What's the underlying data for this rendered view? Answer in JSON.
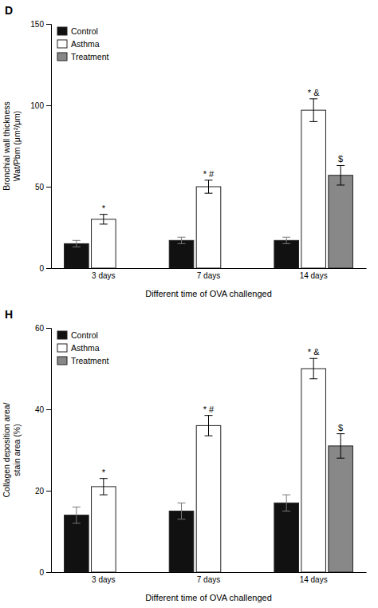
{
  "chart_data": [
    {
      "type": "bar",
      "title": "D",
      "xlabel": "Different time of OVA challenged",
      "ylabel": "Bronchial wall thickness\nWat/Pbm (μm²/μm)",
      "categories": [
        "3 days",
        "7 days",
        "14 days"
      ],
      "series": [
        {
          "name": "Control",
          "color": "#111111",
          "values": [
            15,
            17,
            17
          ],
          "errors": [
            2.0,
            2.0,
            2.0
          ]
        },
        {
          "name": "Asthma",
          "color": "#ffffff",
          "values": [
            30,
            50,
            97
          ],
          "errors": [
            3.0,
            4.0,
            7.0
          ]
        },
        {
          "name": "Treatment",
          "color": "#888888",
          "values": [
            null,
            null,
            57
          ],
          "errors": [
            null,
            null,
            6.0
          ]
        }
      ],
      "annotations": [
        {
          "text": "*",
          "x": "3 days",
          "series": "Asthma"
        },
        {
          "text": "* #",
          "x": "7 days",
          "series": "Asthma"
        },
        {
          "text": "* &",
          "x": "14 days",
          "series": "Asthma"
        },
        {
          "text": "$",
          "x": "14 days",
          "series": "Treatment"
        }
      ],
      "ylim": [
        0,
        150
      ],
      "yticks": [
        0,
        50,
        100,
        150
      ],
      "grid": false,
      "legend": "upper left"
    },
    {
      "type": "bar",
      "title": "H",
      "xlabel": "Different time of OVA challenged",
      "ylabel": "Collagen deposition area/\nstain area (%)",
      "categories": [
        "3 days",
        "7 days",
        "14 days"
      ],
      "series": [
        {
          "name": "Control",
          "color": "#111111",
          "values": [
            14,
            15,
            17
          ],
          "errors": [
            2.0,
            2.0,
            2.0
          ]
        },
        {
          "name": "Asthma",
          "color": "#ffffff",
          "values": [
            21,
            36,
            50
          ],
          "errors": [
            2.0,
            2.5,
            2.5
          ]
        },
        {
          "name": "Treatment",
          "color": "#888888",
          "values": [
            null,
            null,
            31
          ],
          "errors": [
            null,
            null,
            3.0
          ]
        }
      ],
      "annotations": [
        {
          "text": "*",
          "x": "3 days",
          "series": "Asthma"
        },
        {
          "text": "* #",
          "x": "7 days",
          "series": "Asthma"
        },
        {
          "text": "* &",
          "x": "14 days",
          "series": "Asthma"
        },
        {
          "text": "$",
          "x": "14 days",
          "series": "Treatment"
        }
      ],
      "ylim": [
        0,
        60
      ],
      "yticks": [
        0,
        20,
        40,
        60
      ],
      "grid": false,
      "legend": "upper left"
    }
  ]
}
